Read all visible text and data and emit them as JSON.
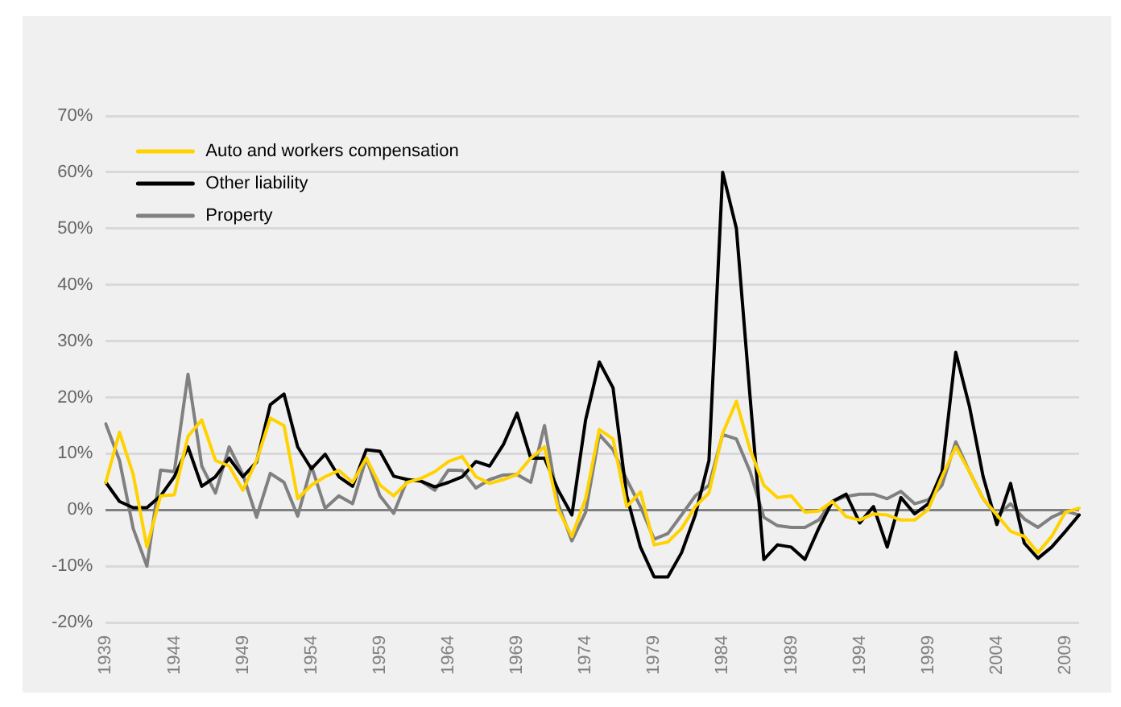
{
  "chart_data": {
    "type": "line",
    "categories": [
      "1939",
      null,
      null,
      null,
      null,
      "1944",
      null,
      null,
      null,
      null,
      "1949",
      null,
      null,
      null,
      null,
      "1954",
      null,
      null,
      null,
      null,
      "1959",
      null,
      null,
      null,
      null,
      "1964",
      null,
      null,
      null,
      null,
      "1969",
      null,
      null,
      null,
      null,
      "1974",
      null,
      null,
      null,
      null,
      "1979",
      null,
      null,
      null,
      null,
      "1984",
      null,
      null,
      null,
      null,
      "1989",
      null,
      null,
      null,
      null,
      "1994",
      null,
      null,
      null,
      null,
      "1999",
      null,
      null,
      null,
      null,
      "2004",
      null,
      null,
      null,
      null,
      "2009",
      null
    ],
    "series": [
      {
        "name": "Auto and workers compensation",
        "color": "#ffd200",
        "values": [
          4.9,
          13.8,
          6.3,
          -6.6,
          2.5,
          2.7,
          13.1,
          16,
          8.8,
          7.8,
          3.5,
          8.8,
          16.3,
          15,
          2,
          4.4,
          5.9,
          7,
          4.9,
          9.2,
          4.4,
          2.5,
          4.9,
          5.6,
          6.8,
          8.6,
          9.5,
          5.9,
          4.7,
          5.4,
          6.3,
          9.2,
          11.2,
          0.1,
          -4.7,
          2,
          14.3,
          12.6,
          0.6,
          3.2,
          -6.2,
          -5.7,
          -3.3,
          0.6,
          3,
          13.6,
          19.3,
          10.7,
          4.4,
          2.2,
          2.5,
          -0.4,
          -0.2,
          1.5,
          -1.2,
          -1.8,
          -0.7,
          -0.9,
          -1.8,
          -1.8,
          0.1,
          5.9,
          11.2,
          6.8,
          2,
          -0.9,
          -3.8,
          -4.7,
          -7.6,
          -4.7,
          -0.4,
          0.3
        ]
      },
      {
        "name": "Other liability",
        "color": "#000000",
        "values": [
          4.9,
          1.5,
          0.4,
          0.4,
          2.5,
          5.9,
          11.2,
          4.2,
          5.9,
          9.2,
          5.9,
          8.5,
          18.7,
          20.6,
          11.2,
          7.3,
          9.9,
          5.9,
          4.2,
          10.7,
          10.4,
          6,
          5.4,
          5.1,
          4.1,
          4.9,
          5.9,
          8.6,
          7.8,
          11.6,
          17.2,
          9.2,
          9.2,
          3.5,
          -0.9,
          16,
          26.3,
          21.7,
          2.5,
          -6.6,
          -11.9,
          -11.9,
          -7.6,
          -0.9,
          8.8,
          60,
          50,
          20,
          -8.8,
          -6.2,
          -6.6,
          -8.8,
          -3.3,
          1.5,
          2.8,
          -2.3,
          0.6,
          -6.6,
          2.2,
          -0.7,
          1.1,
          6.8,
          28,
          18.4,
          5.9,
          -2.6,
          4.7,
          -5.9,
          -8.6,
          -6.6,
          -3.8,
          -0.9
        ]
      },
      {
        "name": "Property",
        "color": "#808080",
        "values": [
          15.3,
          8.8,
          -3.3,
          -10,
          7.1,
          6.8,
          24.1,
          7.8,
          3,
          11.2,
          6.3,
          -1.3,
          6.5,
          4.9,
          -1.1,
          7.8,
          0.3,
          2.5,
          1.1,
          9.2,
          2.5,
          -0.6,
          5.4,
          5.1,
          3.5,
          7.1,
          7,
          3.9,
          5.4,
          6.2,
          6.3,
          4.9,
          15,
          1.1,
          -5.5,
          -0.4,
          13.4,
          10.7,
          5.4,
          0.6,
          -5.2,
          -4.2,
          -0.9,
          2.5,
          4.4,
          13.4,
          12.6,
          6.8,
          -1.3,
          -2.8,
          -3.1,
          -3.1,
          -1.8,
          1.5,
          2.4,
          2.8,
          2.8,
          2,
          3.3,
          1.1,
          1.8,
          4.4,
          12.1,
          6.8,
          2,
          -1.1,
          1.1,
          -1.6,
          -3.1,
          -1.3,
          -0.2,
          -0.9
        ]
      }
    ],
    "ylim": [
      -20,
      70
    ],
    "yticks": [
      {
        "value": -20,
        "label": "-20%"
      },
      {
        "value": -10,
        "label": "-10%"
      },
      {
        "value": 0,
        "label": "0%"
      },
      {
        "value": 10,
        "label": "10%"
      },
      {
        "value": 20,
        "label": "20%"
      },
      {
        "value": 30,
        "label": "30%"
      },
      {
        "value": 40,
        "label": "40%"
      },
      {
        "value": 50,
        "label": "50%"
      },
      {
        "value": 60,
        "label": "60%"
      },
      {
        "value": 70,
        "label": "70%"
      }
    ],
    "grid": "y",
    "legend": "top left",
    "marker": "none",
    "line_style": "solid"
  }
}
